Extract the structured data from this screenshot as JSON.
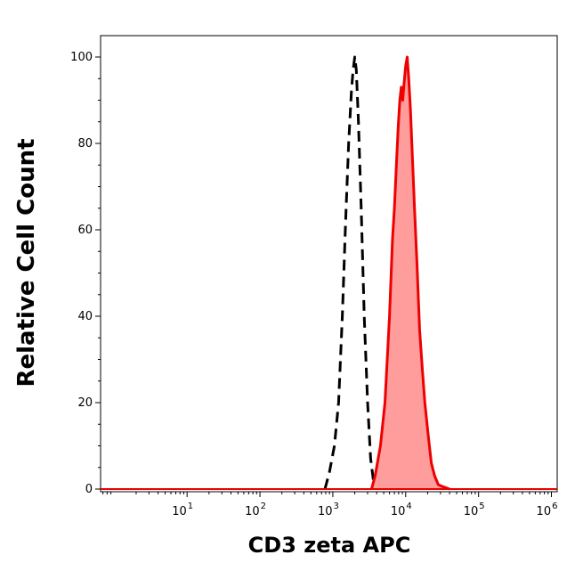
{
  "chart_data": {
    "type": "area",
    "xlabel": "CD3 zeta APC",
    "ylabel": "Relative Cell Count",
    "xscale": "log",
    "xlim": [
      0.65,
      1200000
    ],
    "ylim": [
      0,
      105
    ],
    "x_ticks": [
      {
        "value": 10,
        "base": "10",
        "exp": "1"
      },
      {
        "value": 100,
        "base": "10",
        "exp": "2"
      },
      {
        "value": 1000,
        "base": "10",
        "exp": "3"
      },
      {
        "value": 10000,
        "base": "10",
        "exp": "4"
      },
      {
        "value": 100000,
        "base": "10",
        "exp": "5"
      },
      {
        "value": 1000000,
        "base": "10",
        "exp": "6"
      }
    ],
    "y_ticks": [
      0,
      20,
      40,
      60,
      80,
      100
    ],
    "grid": false,
    "series": [
      {
        "style": "dashed",
        "color": "#000000",
        "fill": "none",
        "x": [
          780,
          900,
          1050,
          1200,
          1350,
          1500,
          1650,
          1800,
          1900,
          2000,
          2100,
          2250,
          2450,
          2700,
          3000,
          3300,
          3600,
          3900
        ],
        "y": [
          0,
          4,
          10,
          20,
          40,
          62,
          80,
          92,
          97,
          100,
          97,
          85,
          65,
          40,
          20,
          7,
          2,
          0
        ]
      },
      {
        "style": "solid",
        "color": "#ee0000",
        "fill": "#ff9c9c",
        "x": [
          3400,
          3800,
          4500,
          5200,
          6000,
          6600,
          7000,
          7400,
          7900,
          8300,
          8700,
          9100,
          9500,
          10000,
          10500,
          11000,
          11600,
          12300,
          13200,
          14300,
          15500,
          16900,
          18300,
          20200,
          22500,
          25000,
          28000,
          33000,
          40000
        ],
        "y": [
          0,
          3,
          10,
          20,
          40,
          58,
          65,
          74,
          84,
          90,
          93,
          90,
          94,
          98,
          100,
          95,
          88,
          78,
          65,
          52,
          37,
          28,
          20,
          13,
          6,
          3,
          1,
          0.5,
          0
        ]
      }
    ]
  }
}
